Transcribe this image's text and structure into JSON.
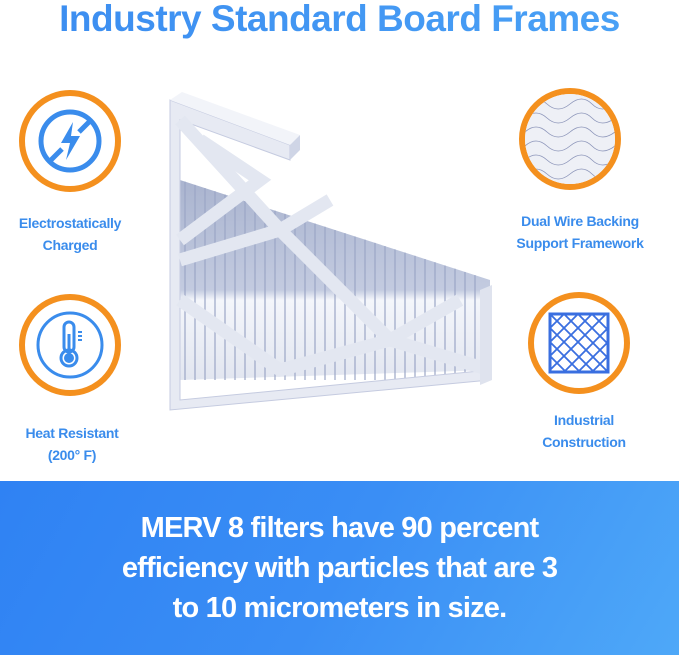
{
  "title": "Industry Standard Board Frames",
  "features": [
    {
      "icon": "no-static-lightning-icon",
      "line1": "Electrostatically",
      "line2": "Charged"
    },
    {
      "icon": "thermometer-icon",
      "line1": "Heat Resistant",
      "line2": "(200° F)"
    },
    {
      "icon": "wire-mesh-photo-icon",
      "line1": "Dual Wire Backing",
      "line2": "Support Framework"
    },
    {
      "icon": "grid-frame-icon",
      "line1": "Industrial",
      "line2": "Construction"
    }
  ],
  "banner": {
    "line1": "MERV 8 filters have 90 percent",
    "line2": "efficiency with particles that are 3",
    "line3": "to 10 micrometers in size."
  },
  "colors": {
    "accent_blue": "#3a8cec",
    "ring_orange": "#f4901e",
    "banner_blue": "#2f82f3"
  }
}
